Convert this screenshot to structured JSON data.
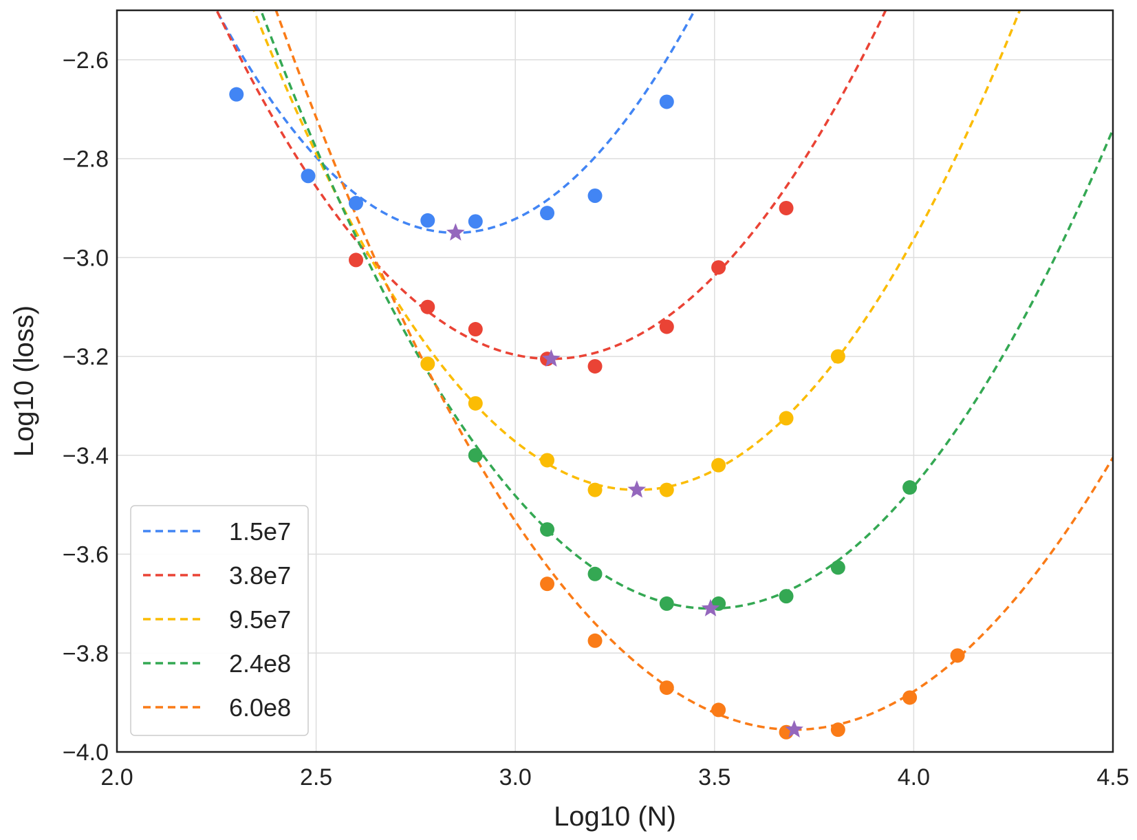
{
  "chart_data": {
    "type": "scatter",
    "xlabel": "Log10 (N)",
    "ylabel": "Log10 (loss)",
    "xlim": [
      2.0,
      4.5
    ],
    "ylim": [
      -4.0,
      -2.5
    ],
    "xticks": [
      "2.0",
      "2.5",
      "3.0",
      "3.5",
      "4.0",
      "4.5"
    ],
    "xtick_values": [
      2.0,
      2.5,
      3.0,
      3.5,
      4.0,
      4.5
    ],
    "yticks": [
      "−2.6",
      "−2.8",
      "−3.0",
      "−3.2",
      "−3.4",
      "−3.6",
      "−3.8",
      "−4.0"
    ],
    "ytick_values": [
      -2.6,
      -2.8,
      -3.0,
      -3.2,
      -3.4,
      -3.6,
      -3.8,
      -4.0
    ],
    "grid": true,
    "legend_position": "bottom-left",
    "series": [
      {
        "name": "1.5e7",
        "color": "#4285F4",
        "points": [
          [
            2.3,
            -2.67
          ],
          [
            2.48,
            -2.835
          ],
          [
            2.6,
            -2.89
          ],
          [
            2.78,
            -2.925
          ],
          [
            2.9,
            -2.927
          ],
          [
            3.08,
            -2.91
          ],
          [
            3.2,
            -2.875
          ],
          [
            3.38,
            -2.685
          ]
        ],
        "fit": {
          "a": 1.25,
          "xmin": 2.85,
          "ymin": -2.95
        },
        "optimum": [
          2.85,
          -2.95
        ]
      },
      {
        "name": "3.8e7",
        "color": "#EA4335",
        "points": [
          [
            2.6,
            -3.005
          ],
          [
            2.78,
            -3.1
          ],
          [
            2.9,
            -3.145
          ],
          [
            3.08,
            -3.205
          ],
          [
            3.2,
            -3.22
          ],
          [
            3.38,
            -3.14
          ],
          [
            3.51,
            -3.02
          ],
          [
            3.68,
            -2.9
          ]
        ],
        "fit": {
          "a": 1.0,
          "xmin": 3.09,
          "ymin": -3.205
        },
        "optimum": [
          3.09,
          -3.205
        ]
      },
      {
        "name": "9.5e7",
        "color": "#FBBC04",
        "points": [
          [
            2.78,
            -3.215
          ],
          [
            2.9,
            -3.295
          ],
          [
            3.08,
            -3.41
          ],
          [
            3.2,
            -3.47
          ],
          [
            3.38,
            -3.47
          ],
          [
            3.51,
            -3.42
          ],
          [
            3.68,
            -3.325
          ],
          [
            3.81,
            -3.2
          ]
        ],
        "fit": {
          "a": 1.05,
          "xmin": 3.305,
          "ymin": -3.47
        },
        "optimum": [
          3.305,
          -3.47
        ]
      },
      {
        "name": "2.4e8",
        "color": "#34A853",
        "points": [
          [
            2.9,
            -3.4
          ],
          [
            3.08,
            -3.55
          ],
          [
            3.2,
            -3.64
          ],
          [
            3.38,
            -3.7
          ],
          [
            3.51,
            -3.7
          ],
          [
            3.68,
            -3.685
          ],
          [
            3.81,
            -3.627
          ],
          [
            3.99,
            -3.465
          ]
        ],
        "fit": {
          "a": 0.95,
          "xmin": 3.49,
          "ymin": -3.71
        },
        "optimum": [
          3.49,
          -3.71
        ]
      },
      {
        "name": "6.0e8",
        "color": "#FA7B17",
        "points": [
          [
            3.08,
            -3.66
          ],
          [
            3.2,
            -3.775
          ],
          [
            3.38,
            -3.87
          ],
          [
            3.51,
            -3.915
          ],
          [
            3.68,
            -3.96
          ],
          [
            3.81,
            -3.955
          ],
          [
            3.99,
            -3.89
          ],
          [
            4.11,
            -3.805
          ]
        ],
        "fit": {
          "a": 0.86,
          "xmin": 3.7,
          "ymin": -3.955
        },
        "optimum": [
          3.7,
          -3.955
        ]
      }
    ],
    "optimum_marker": {
      "shape": "star",
      "color": "#9467BD"
    }
  }
}
